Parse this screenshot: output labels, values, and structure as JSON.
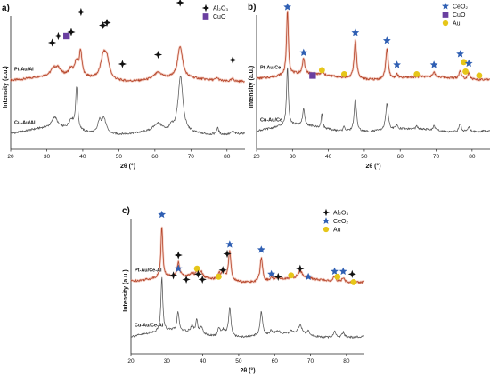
{
  "colors": {
    "pt_trace": "#b5452a",
    "pt_trace_halo": "#f0b4a4",
    "cu_trace": "#555555",
    "al2o3_marker": "#111111",
    "ceo2_marker": "#2f5fb3",
    "cuo_marker": "#6a3fa0",
    "au_marker": "#e6c619"
  },
  "icons": {
    "al2o3": "four-point-star-icon",
    "ceo2": "star-icon",
    "cuo": "square-icon",
    "au": "circle-icon"
  },
  "chart_data": [
    {
      "type": "line",
      "panel": "a)",
      "xlabel": "2θ (°)",
      "ylabel": "Intensity (a.u.)",
      "xlim": [
        20,
        85
      ],
      "xticks": [
        "20",
        "30",
        "40",
        "50",
        "60",
        "70",
        "80"
      ],
      "legend": [
        {
          "name": "Al₂O₃",
          "marker": "al2o3"
        },
        {
          "name": "CuO",
          "marker": "cuo"
        }
      ],
      "legend_position": "top-right",
      "series": [
        {
          "name": "Pt-Au/Al",
          "style": "pt",
          "baseline": 0.52,
          "peaks": [
            [
              31.9,
              0.05,
              0.8
            ],
            [
              33.2,
              0.05,
              0.8
            ],
            [
              36.7,
              0.05,
              0.7
            ],
            [
              38.2,
              0.1,
              0.5
            ],
            [
              39.4,
              0.19,
              0.45
            ],
            [
              45.7,
              0.16,
              0.9
            ],
            [
              46.7,
              0.13,
              0.8
            ],
            [
              60.9,
              0.05,
              1.4
            ],
            [
              67.0,
              0.24,
              0.8
            ],
            [
              77.3,
              0.02,
              0.5
            ],
            [
              81.6,
              0.02,
              0.5
            ]
          ]
        },
        {
          "name": "Cu-Au/Al",
          "style": "cu",
          "baseline": 0.12,
          "peaks": [
            [
              32.2,
              0.08,
              0.9
            ],
            [
              36.8,
              0.07,
              0.8
            ],
            [
              38.3,
              0.32,
              0.35
            ],
            [
              44.6,
              0.08,
              0.5
            ],
            [
              45.8,
              0.12,
              0.8
            ],
            [
              60.8,
              0.06,
              1.4
            ],
            [
              64.6,
              0.03,
              0.4
            ],
            [
              67.1,
              0.42,
              0.8
            ],
            [
              77.4,
              0.05,
              0.4
            ],
            [
              81.6,
              0.02,
              0.5
            ]
          ]
        }
      ],
      "markers": [
        {
          "type": "al2o3",
          "x": 31.5,
          "y": 0.8
        },
        {
          "type": "al2o3",
          "x": 33.2,
          "y": 0.85
        },
        {
          "type": "cuo",
          "x": 35.5,
          "y": 0.85
        },
        {
          "type": "al2o3",
          "x": 36.8,
          "y": 0.88
        },
        {
          "type": "al2o3",
          "x": 39.5,
          "y": 1.03
        },
        {
          "type": "al2o3",
          "x": 45.6,
          "y": 0.93
        },
        {
          "type": "al2o3",
          "x": 46.7,
          "y": 0.95
        },
        {
          "type": "al2o3",
          "x": 51.0,
          "y": 0.64
        },
        {
          "type": "al2o3",
          "x": 60.9,
          "y": 0.71
        },
        {
          "type": "al2o3",
          "x": 67.0,
          "y": 1.1
        },
        {
          "type": "al2o3",
          "x": 81.6,
          "y": 0.67
        }
      ]
    },
    {
      "type": "line",
      "panel": "b)",
      "xlabel": "2θ (°)",
      "ylabel": "Intensity (a.u.)",
      "xlim": [
        20,
        85
      ],
      "xticks": [
        "20",
        "30",
        "40",
        "50",
        "60",
        "70",
        "80"
      ],
      "legend": [
        {
          "name": "CeO₂",
          "marker": "ceo2"
        },
        {
          "name": "CuO",
          "marker": "cuo"
        },
        {
          "name": "Au",
          "marker": "au"
        }
      ],
      "legend_position": "top-right",
      "series": [
        {
          "name": "Pt-Au/Ce",
          "style": "pt",
          "baseline": 0.53,
          "peaks": [
            [
              28.6,
              0.48,
              0.3
            ],
            [
              33.1,
              0.12,
              0.35
            ],
            [
              38.3,
              0.03,
              0.3
            ],
            [
              47.5,
              0.29,
              0.4
            ],
            [
              56.3,
              0.23,
              0.4
            ],
            [
              59.1,
              0.03,
              0.35
            ],
            [
              69.4,
              0.03,
              0.4
            ],
            [
              76.7,
              0.06,
              0.4
            ],
            [
              79.1,
              0.05,
              0.4
            ]
          ]
        },
        {
          "name": "Cu-Au/Ce",
          "style": "cu",
          "baseline": 0.14,
          "peaks": [
            [
              28.6,
              0.44,
              0.3
            ],
            [
              33.1,
              0.12,
              0.35
            ],
            [
              38.2,
              0.11,
              0.25
            ],
            [
              44.4,
              0.04,
              0.25
            ],
            [
              47.5,
              0.25,
              0.4
            ],
            [
              56.3,
              0.2,
              0.4
            ],
            [
              59.1,
              0.03,
              0.35
            ],
            [
              64.6,
              0.02,
              0.3
            ],
            [
              69.4,
              0.03,
              0.4
            ],
            [
              76.7,
              0.06,
              0.4
            ],
            [
              79.1,
              0.04,
              0.4
            ]
          ]
        }
      ],
      "markers": [
        {
          "type": "ceo2",
          "x": 28.6,
          "y": 1.06
        },
        {
          "type": "ceo2",
          "x": 33.1,
          "y": 0.72
        },
        {
          "type": "cuo",
          "x": 35.6,
          "y": 0.55
        },
        {
          "type": "au",
          "x": 38.2,
          "y": 0.59
        },
        {
          "type": "au",
          "x": 44.4,
          "y": 0.56
        },
        {
          "type": "ceo2",
          "x": 47.5,
          "y": 0.87
        },
        {
          "type": "ceo2",
          "x": 56.3,
          "y": 0.81
        },
        {
          "type": "ceo2",
          "x": 59.1,
          "y": 0.63
        },
        {
          "type": "au",
          "x": 64.6,
          "y": 0.56
        },
        {
          "type": "ceo2",
          "x": 69.4,
          "y": 0.63
        },
        {
          "type": "ceo2",
          "x": 76.7,
          "y": 0.71
        },
        {
          "type": "au",
          "x": 77.7,
          "y": 0.65
        },
        {
          "type": "au",
          "x": 78.2,
          "y": 0.58
        },
        {
          "type": "ceo2",
          "x": 79.1,
          "y": 0.64
        },
        {
          "type": "au",
          "x": 82.0,
          "y": 0.55
        }
      ]
    },
    {
      "type": "line",
      "panel": "c)",
      "xlabel": "2θ (°)",
      "ylabel": "Intensity (a.u.)",
      "xlim": [
        20,
        85
      ],
      "xticks": [
        "20",
        "30",
        "40",
        "50",
        "60",
        "70",
        "80"
      ],
      "legend": [
        {
          "name": "Al₂O₃",
          "marker": "al2o3"
        },
        {
          "name": "CeO₂",
          "marker": "ceo2"
        },
        {
          "name": "Au",
          "marker": "au"
        }
      ],
      "legend_position": "top-right",
      "series": [
        {
          "name": "Pt-Au/Ce-Al",
          "style": "pt",
          "baseline": 0.54,
          "peaks": [
            [
              28.6,
              0.38,
              0.3
            ],
            [
              33.2,
              0.1,
              0.4
            ],
            [
              37.0,
              0.03,
              0.5
            ],
            [
              38.4,
              0.05,
              0.4
            ],
            [
              39.6,
              0.04,
              0.5
            ],
            [
              44.5,
              0.04,
              0.4
            ],
            [
              45.7,
              0.06,
              0.7
            ],
            [
              47.5,
              0.22,
              0.4
            ],
            [
              56.3,
              0.18,
              0.4
            ],
            [
              59.1,
              0.02,
              0.4
            ],
            [
              61.0,
              0.02,
              1.0
            ],
            [
              64.6,
              0.02,
              0.4
            ],
            [
              67.1,
              0.06,
              0.8
            ],
            [
              69.4,
              0.02,
              0.4
            ],
            [
              76.7,
              0.04,
              0.4
            ],
            [
              79.1,
              0.03,
              0.4
            ]
          ]
        },
        {
          "name": "Cu-Au/Ce-Al",
          "style": "cu",
          "baseline": 0.13,
          "peaks": [
            [
              28.6,
              0.4,
              0.3
            ],
            [
              33.1,
              0.14,
              0.35
            ],
            [
              37.0,
              0.05,
              0.5
            ],
            [
              38.3,
              0.1,
              0.3
            ],
            [
              39.6,
              0.05,
              0.5
            ],
            [
              44.5,
              0.06,
              0.35
            ],
            [
              45.7,
              0.05,
              0.7
            ],
            [
              47.5,
              0.22,
              0.4
            ],
            [
              56.3,
              0.18,
              0.4
            ],
            [
              59.1,
              0.03,
              0.4
            ],
            [
              61.0,
              0.02,
              1.0
            ],
            [
              64.6,
              0.03,
              0.4
            ],
            [
              67.1,
              0.07,
              0.8
            ],
            [
              69.4,
              0.03,
              0.4
            ],
            [
              76.7,
              0.05,
              0.4
            ],
            [
              79.1,
              0.04,
              0.4
            ]
          ]
        }
      ],
      "markers": [
        {
          "type": "ceo2",
          "x": 28.6,
          "y": 1.03
        },
        {
          "type": "al2o3",
          "x": 31.8,
          "y": 0.58
        },
        {
          "type": "al2o3",
          "x": 33.2,
          "y": 0.73
        },
        {
          "type": "ceo2",
          "x": 33.2,
          "y": 0.63
        },
        {
          "type": "al2o3",
          "x": 35.4,
          "y": 0.55
        },
        {
          "type": "au",
          "x": 38.4,
          "y": 0.63
        },
        {
          "type": "al2o3",
          "x": 38.7,
          "y": 0.59
        },
        {
          "type": "al2o3",
          "x": 39.9,
          "y": 0.55
        },
        {
          "type": "au",
          "x": 44.4,
          "y": 0.57
        },
        {
          "type": "al2o3",
          "x": 45.6,
          "y": 0.62
        },
        {
          "type": "al2o3",
          "x": 46.8,
          "y": 0.74
        },
        {
          "type": "ceo2",
          "x": 47.5,
          "y": 0.81
        },
        {
          "type": "ceo2",
          "x": 56.3,
          "y": 0.77
        },
        {
          "type": "ceo2",
          "x": 59.1,
          "y": 0.59
        },
        {
          "type": "al2o3",
          "x": 61.0,
          "y": 0.57
        },
        {
          "type": "au",
          "x": 64.6,
          "y": 0.58
        },
        {
          "type": "al2o3",
          "x": 67.1,
          "y": 0.63
        },
        {
          "type": "ceo2",
          "x": 69.4,
          "y": 0.57
        },
        {
          "type": "ceo2",
          "x": 76.7,
          "y": 0.61
        },
        {
          "type": "au",
          "x": 77.5,
          "y": 0.57
        },
        {
          "type": "ceo2",
          "x": 79.1,
          "y": 0.61
        },
        {
          "type": "al2o3",
          "x": 81.6,
          "y": 0.59
        },
        {
          "type": "au",
          "x": 82.0,
          "y": 0.53
        }
      ]
    }
  ]
}
